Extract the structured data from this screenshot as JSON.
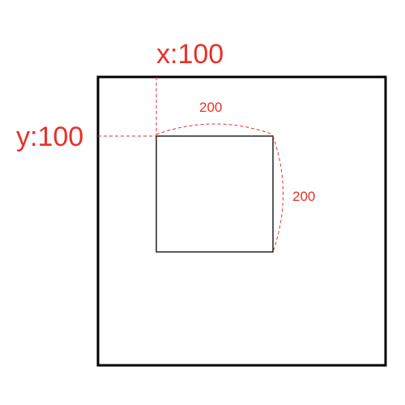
{
  "labels": {
    "x_origin": "x:100",
    "y_origin": "y:100",
    "width": "200",
    "height": "200"
  },
  "colors": {
    "frame": "#000000",
    "annotation": "#e8312a"
  }
}
